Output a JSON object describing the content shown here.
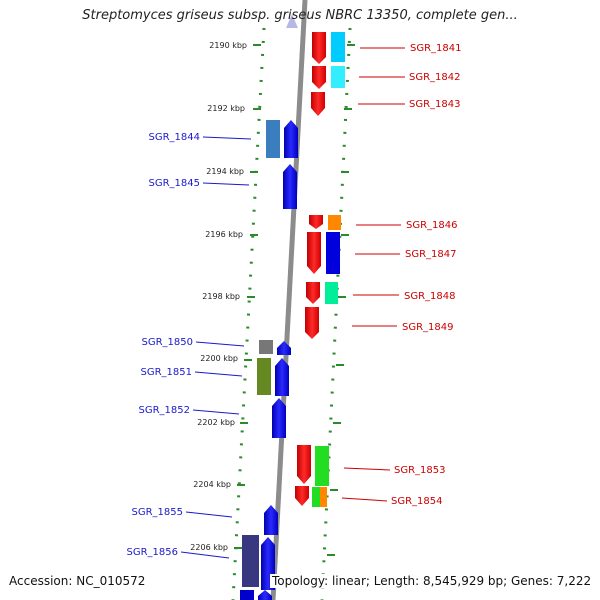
{
  "title": "Streptomyces griseus subsp. griseus NBRC 13350, complete gen...",
  "footer": {
    "accession": "Accession: NC_010572",
    "summary": "Topology: linear; Length: 8,545,929 bp; Genes: 7,222"
  },
  "colors": {
    "backbone": "#8c8c8c",
    "forward_gene": "#0000ff",
    "reverse_gene": "#ff0000",
    "left_label": "#1a1acc",
    "right_label": "#cc0000",
    "scale_tick": "#2b8a2b",
    "kbp_text": "#222222"
  },
  "scale_labels": [
    "2190 kbp",
    "2192 kbp",
    "2194 kbp",
    "2196 kbp",
    "2198 kbp",
    "2200 kbp",
    "2202 kbp",
    "2204 kbp",
    "2206 kbp"
  ],
  "genes_left": [
    "SGR_1844",
    "SGR_1845",
    "SGR_1850",
    "SGR_1851",
    "SGR_1852",
    "SGR_1855",
    "SGR_1856"
  ],
  "genes_right": [
    "SGR_1841",
    "SGR_1842",
    "SGR_1843",
    "SGR_1846",
    "SGR_1847",
    "SGR_1848",
    "SGR_1849",
    "SGR_1853",
    "SGR_1854"
  ]
}
